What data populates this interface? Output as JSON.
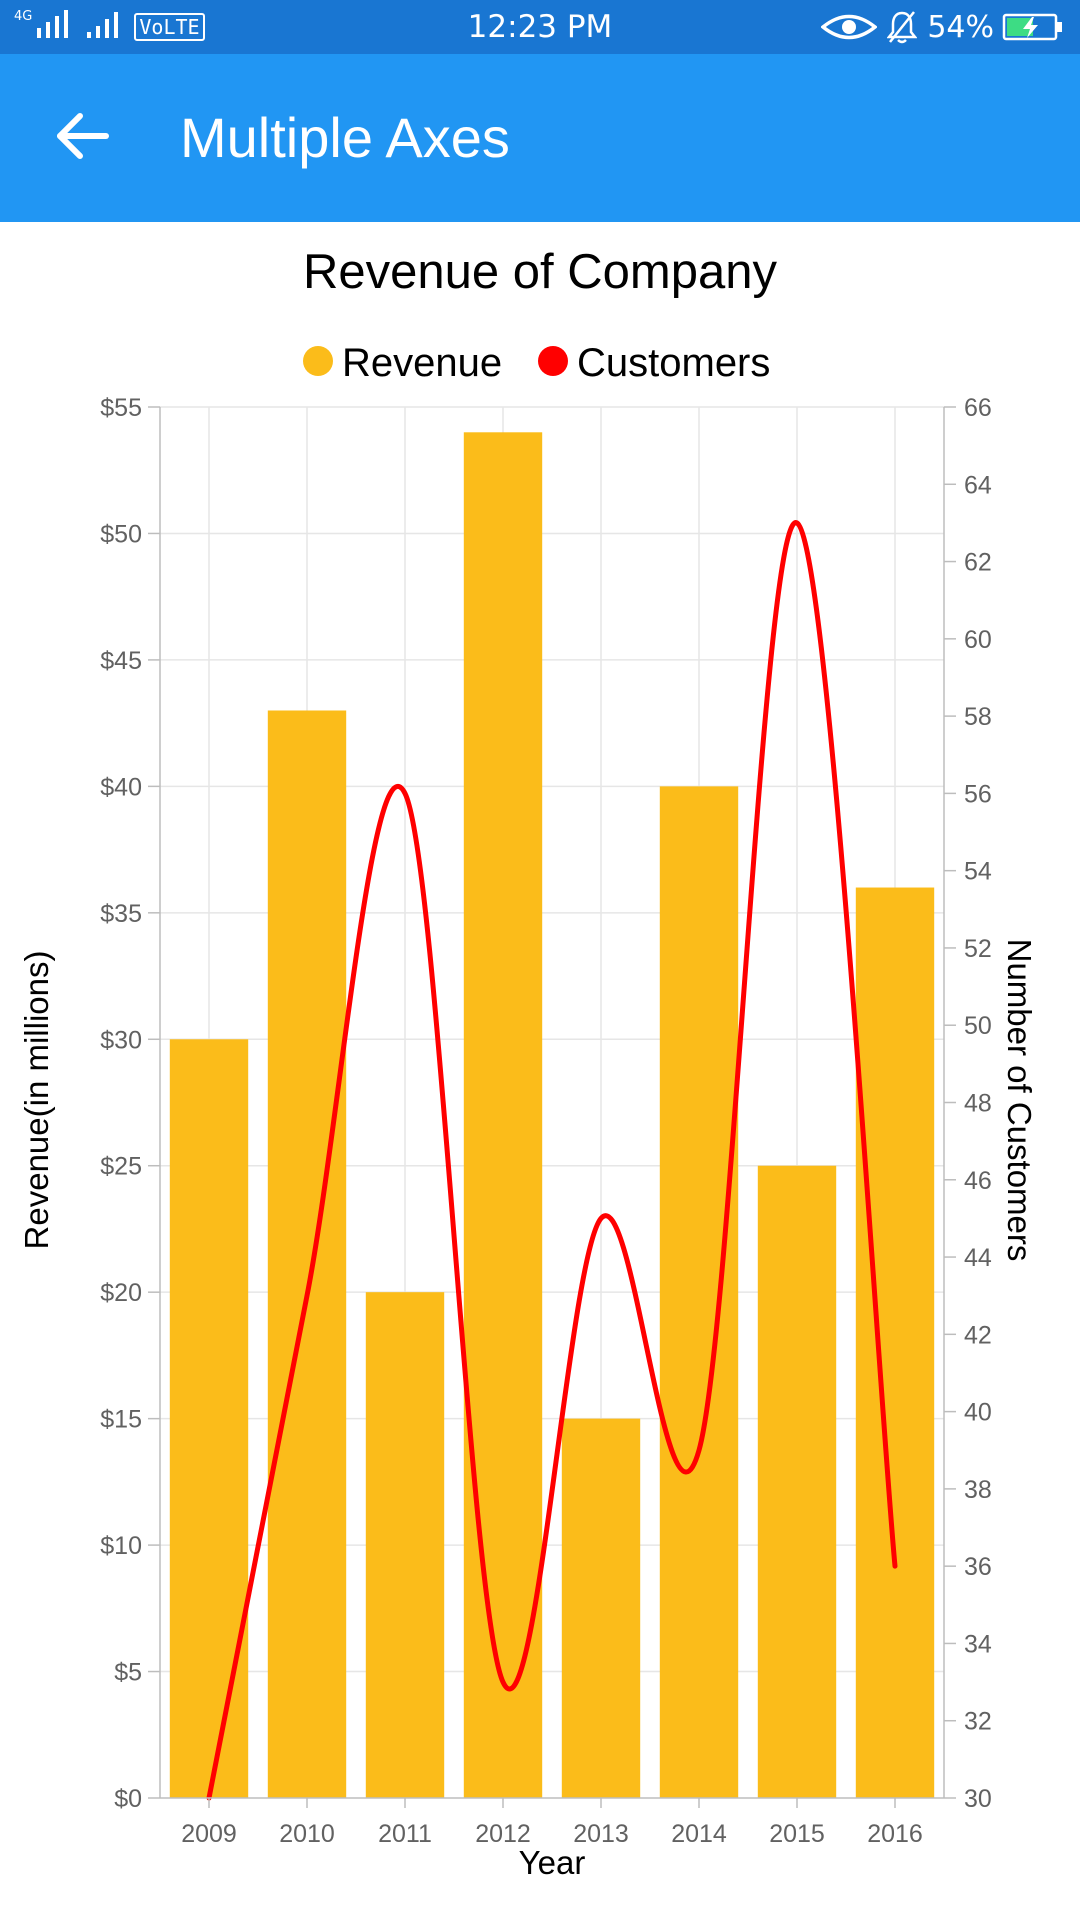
{
  "status_bar": {
    "network": "4G",
    "volte": "VoLTE",
    "time": "12:23 PM",
    "battery": "54%",
    "icons": [
      "signal-icon",
      "eye-icon",
      "bell-off-icon",
      "battery-charging-icon"
    ]
  },
  "app_bar": {
    "title": "Multiple Axes",
    "back_icon": "arrow-left-icon",
    "color": "#2196F3"
  },
  "chart_data": {
    "type": "bar",
    "title": "Revenue of Company",
    "legend_position": "top",
    "grid": true,
    "xlabel": "Year",
    "categories": [
      "2009",
      "2010",
      "2011",
      "2012",
      "2013",
      "2014",
      "2015",
      "2016"
    ],
    "series": [
      {
        "name": "Revenue",
        "type": "bar",
        "axis": "primary",
        "color": "#FBBC1A",
        "values": [
          30,
          43,
          20,
          54,
          15,
          40,
          25,
          36
        ]
      },
      {
        "name": "Customers",
        "type": "line",
        "smooth": true,
        "axis": "secondary",
        "color": "#FF0000",
        "values": [
          30,
          43,
          56,
          33,
          45,
          39,
          63,
          36
        ]
      }
    ],
    "primary_axis": {
      "label": "Revenue(in millions)",
      "min": 0,
      "max": 55,
      "interval": 5,
      "tick_labels": [
        "$0",
        "$5",
        "$10",
        "$15",
        "$20",
        "$25",
        "$30",
        "$35",
        "$40",
        "$45",
        "$50",
        "$55"
      ]
    },
    "secondary_axis": {
      "label": "Number of Customers",
      "min": 30,
      "max": 66,
      "interval": 2,
      "tick_labels": [
        "30",
        "32",
        "34",
        "36",
        "38",
        "40",
        "42",
        "44",
        "46",
        "48",
        "50",
        "52",
        "54",
        "56",
        "58",
        "60",
        "62",
        "64",
        "66"
      ]
    }
  }
}
